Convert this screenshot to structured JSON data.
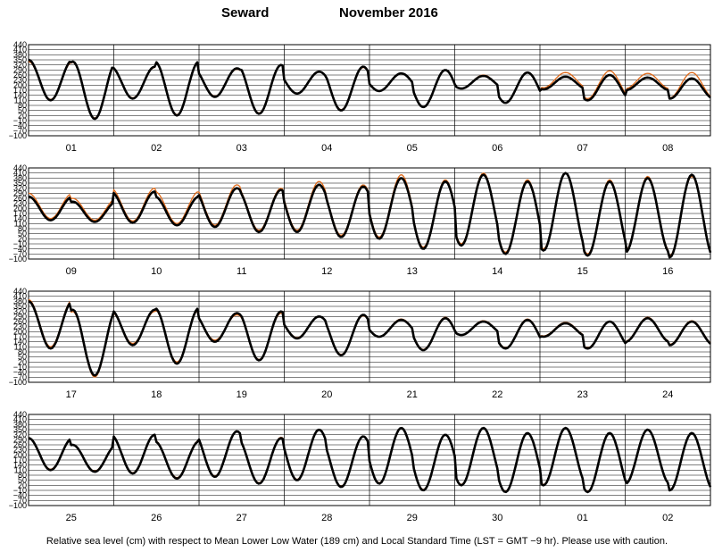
{
  "title": {
    "station": "Seward",
    "period": "November   2016"
  },
  "footer": "Relative sea level (cm) with respect to Mean Lower Low Water (189 cm) and Local Standard Time (LST = GMT −9 hr). Please use with caution.",
  "colors": {
    "observed": "#000000",
    "predicted": "#e06a1a",
    "grid": "#000000"
  },
  "chart_data": {
    "type": "line",
    "ylim": [
      -100,
      440
    ],
    "yticks": [
      440,
      410,
      380,
      350,
      320,
      290,
      260,
      230,
      200,
      170,
      140,
      110,
      80,
      50,
      20,
      -10,
      -40,
      -70,
      -100
    ],
    "ytick_labels": [
      "440",
      "410",
      "380",
      "350",
      "320",
      "290",
      "260",
      "230",
      "200",
      "170",
      "140",
      "110",
      "80",
      "50",
      "20",
      "−10",
      "−40",
      "−70",
      "−100"
    ],
    "grid": true,
    "legend": "none",
    "series": [
      {
        "color": "#000000"
      },
      {
        "color": "#e06a1a"
      }
    ],
    "panels": [
      {
        "day_labels": [
          "01",
          "02",
          "03",
          "04",
          "05",
          "06",
          "07",
          "08"
        ],
        "days": [
          {
            "hh": [
              350,
              340
            ],
            "hl": [
              110,
              0
            ],
            "ph": [
              340,
              335
            ],
            "pl": [
              115,
              5
            ]
          },
          {
            "hh": [
              310,
              340
            ],
            "hl": [
              120,
              20
            ],
            "ph": [
              305,
              335
            ],
            "pl": [
              125,
              25
            ]
          },
          {
            "hh": [
              300,
              320
            ],
            "hl": [
              130,
              30
            ],
            "ph": [
              295,
              320
            ],
            "pl": [
              135,
              35
            ]
          },
          {
            "hh": [
              280,
              310
            ],
            "hl": [
              150,
              50
            ],
            "ph": [
              280,
              305
            ],
            "pl": [
              150,
              55
            ]
          },
          {
            "hh": [
              270,
              290
            ],
            "hl": [
              165,
              70
            ],
            "ph": [
              270,
              290
            ],
            "pl": [
              165,
              70
            ]
          },
          {
            "hh": [
              255,
              275
            ],
            "hl": [
              180,
              95
            ],
            "ph": [
              260,
              275
            ],
            "pl": [
              180,
              95
            ]
          },
          {
            "hh": [
              250,
              260
            ],
            "hl": [
              175,
              110
            ],
            "ph": [
              275,
              285
            ],
            "pl": [
              185,
              120
            ]
          },
          {
            "hh": [
              245,
              240
            ],
            "hl": [
              170,
              120
            ],
            "ph": [
              270,
              275
            ],
            "pl": [
              180,
              125
            ]
          }
        ]
      },
      {
        "day_labels": [
          "09",
          "10",
          "11",
          "12",
          "13",
          "14",
          "15",
          "16"
        ],
        "days": [
          {
            "hh": [
              270,
              240
            ],
            "hl": [
              130,
              120
            ],
            "ph": [
              290,
              260
            ],
            "pl": [
              140,
              130
            ]
          },
          {
            "hh": [
              300,
              270
            ],
            "hl": [
              115,
              100
            ],
            "ph": [
              320,
              300
            ],
            "pl": [
              125,
              110
            ]
          },
          {
            "hh": [
              320,
              310
            ],
            "hl": [
              90,
              60
            ],
            "ph": [
              340,
              320
            ],
            "pl": [
              100,
              70
            ]
          },
          {
            "hh": [
              340,
              330
            ],
            "hl": [
              60,
              30
            ],
            "ph": [
              360,
              340
            ],
            "pl": [
              70,
              40
            ]
          },
          {
            "hh": [
              380,
              360
            ],
            "hl": [
              20,
              -40
            ],
            "ph": [
              400,
              370
            ],
            "pl": [
              30,
              -30
            ]
          },
          {
            "hh": [
              400,
              360
            ],
            "hl": [
              -20,
              -70
            ],
            "ph": [
              410,
              370
            ],
            "pl": [
              -10,
              -60
            ]
          },
          {
            "hh": [
              410,
              360
            ],
            "hl": [
              -50,
              -80
            ],
            "ph": [
              410,
              370
            ],
            "pl": [
              -40,
              -70
            ]
          },
          {
            "hh": [
              380,
              400
            ],
            "hl": [
              -60,
              -90
            ],
            "ph": [
              390,
              390
            ],
            "pl": [
              -50,
              -80
            ]
          }
        ]
      },
      {
        "day_labels": [
          "17",
          "18",
          "19",
          "20",
          "21",
          "22",
          "23",
          "24"
        ],
        "days": [
          {
            "hh": [
              380,
              330
            ],
            "hl": [
              100,
              -60
            ],
            "ph": [
              390,
              320
            ],
            "pl": [
              110,
              -70
            ]
          },
          {
            "hh": [
              330,
              340
            ],
            "hl": [
              120,
              10
            ],
            "ph": [
              320,
              330
            ],
            "pl": [
              130,
              20
            ]
          },
          {
            "hh": [
              310,
              320
            ],
            "hl": [
              140,
              30
            ],
            "ph": [
              300,
              310
            ],
            "pl": [
              150,
              35
            ]
          },
          {
            "hh": [
              290,
              300
            ],
            "hl": [
              160,
              60
            ],
            "ph": [
              290,
              295
            ],
            "pl": [
              165,
              65
            ]
          },
          {
            "hh": [
              270,
              280
            ],
            "hl": [
              170,
              90
            ],
            "ph": [
              275,
              285
            ],
            "pl": [
              170,
              95
            ]
          },
          {
            "hh": [
              260,
              270
            ],
            "hl": [
              180,
              100
            ],
            "ph": [
              265,
              275
            ],
            "pl": [
              180,
              105
            ]
          },
          {
            "hh": [
              250,
              260
            ],
            "hl": [
              170,
              100
            ],
            "ph": [
              255,
              260
            ],
            "pl": [
              175,
              105
            ]
          },
          {
            "hh": [
              280,
              260
            ],
            "hl": [
              140,
              120
            ],
            "ph": [
              285,
              265
            ],
            "pl": [
              145,
              125
            ]
          }
        ]
      },
      {
        "day_labels": [
          "25",
          "26",
          "27",
          "28",
          "29",
          "30",
          "01",
          "02"
        ],
        "days": [
          {
            "hh": [
              300,
              260
            ],
            "hl": [
              110,
              100
            ],
            "ph": [
              300,
              260
            ],
            "pl": [
              115,
              105
            ]
          },
          {
            "hh": [
              320,
              280
            ],
            "hl": [
              90,
              60
            ],
            "ph": [
              320,
              285
            ],
            "pl": [
              95,
              65
            ]
          },
          {
            "hh": [
              340,
              300
            ],
            "hl": [
              70,
              30
            ],
            "ph": [
              340,
              305
            ],
            "pl": [
              75,
              35
            ]
          },
          {
            "hh": [
              350,
              310
            ],
            "hl": [
              50,
              10
            ],
            "ph": [
              350,
              310
            ],
            "pl": [
              55,
              15
            ]
          },
          {
            "hh": [
              360,
              320
            ],
            "hl": [
              30,
              -10
            ],
            "ph": [
              360,
              320
            ],
            "pl": [
              35,
              -5
            ]
          },
          {
            "hh": [
              360,
              330
            ],
            "hl": [
              20,
              -20
            ],
            "ph": [
              360,
              330
            ],
            "pl": [
              25,
              -15
            ]
          },
          {
            "hh": [
              360,
              330
            ],
            "hl": [
              20,
              -20
            ],
            "ph": [
              360,
              330
            ],
            "pl": [
              25,
              -15
            ]
          },
          {
            "hh": [
              350,
              330
            ],
            "hl": [
              30,
              -10
            ],
            "ph": [
              350,
              330
            ],
            "pl": [
              35,
              -5
            ]
          }
        ]
      }
    ]
  }
}
